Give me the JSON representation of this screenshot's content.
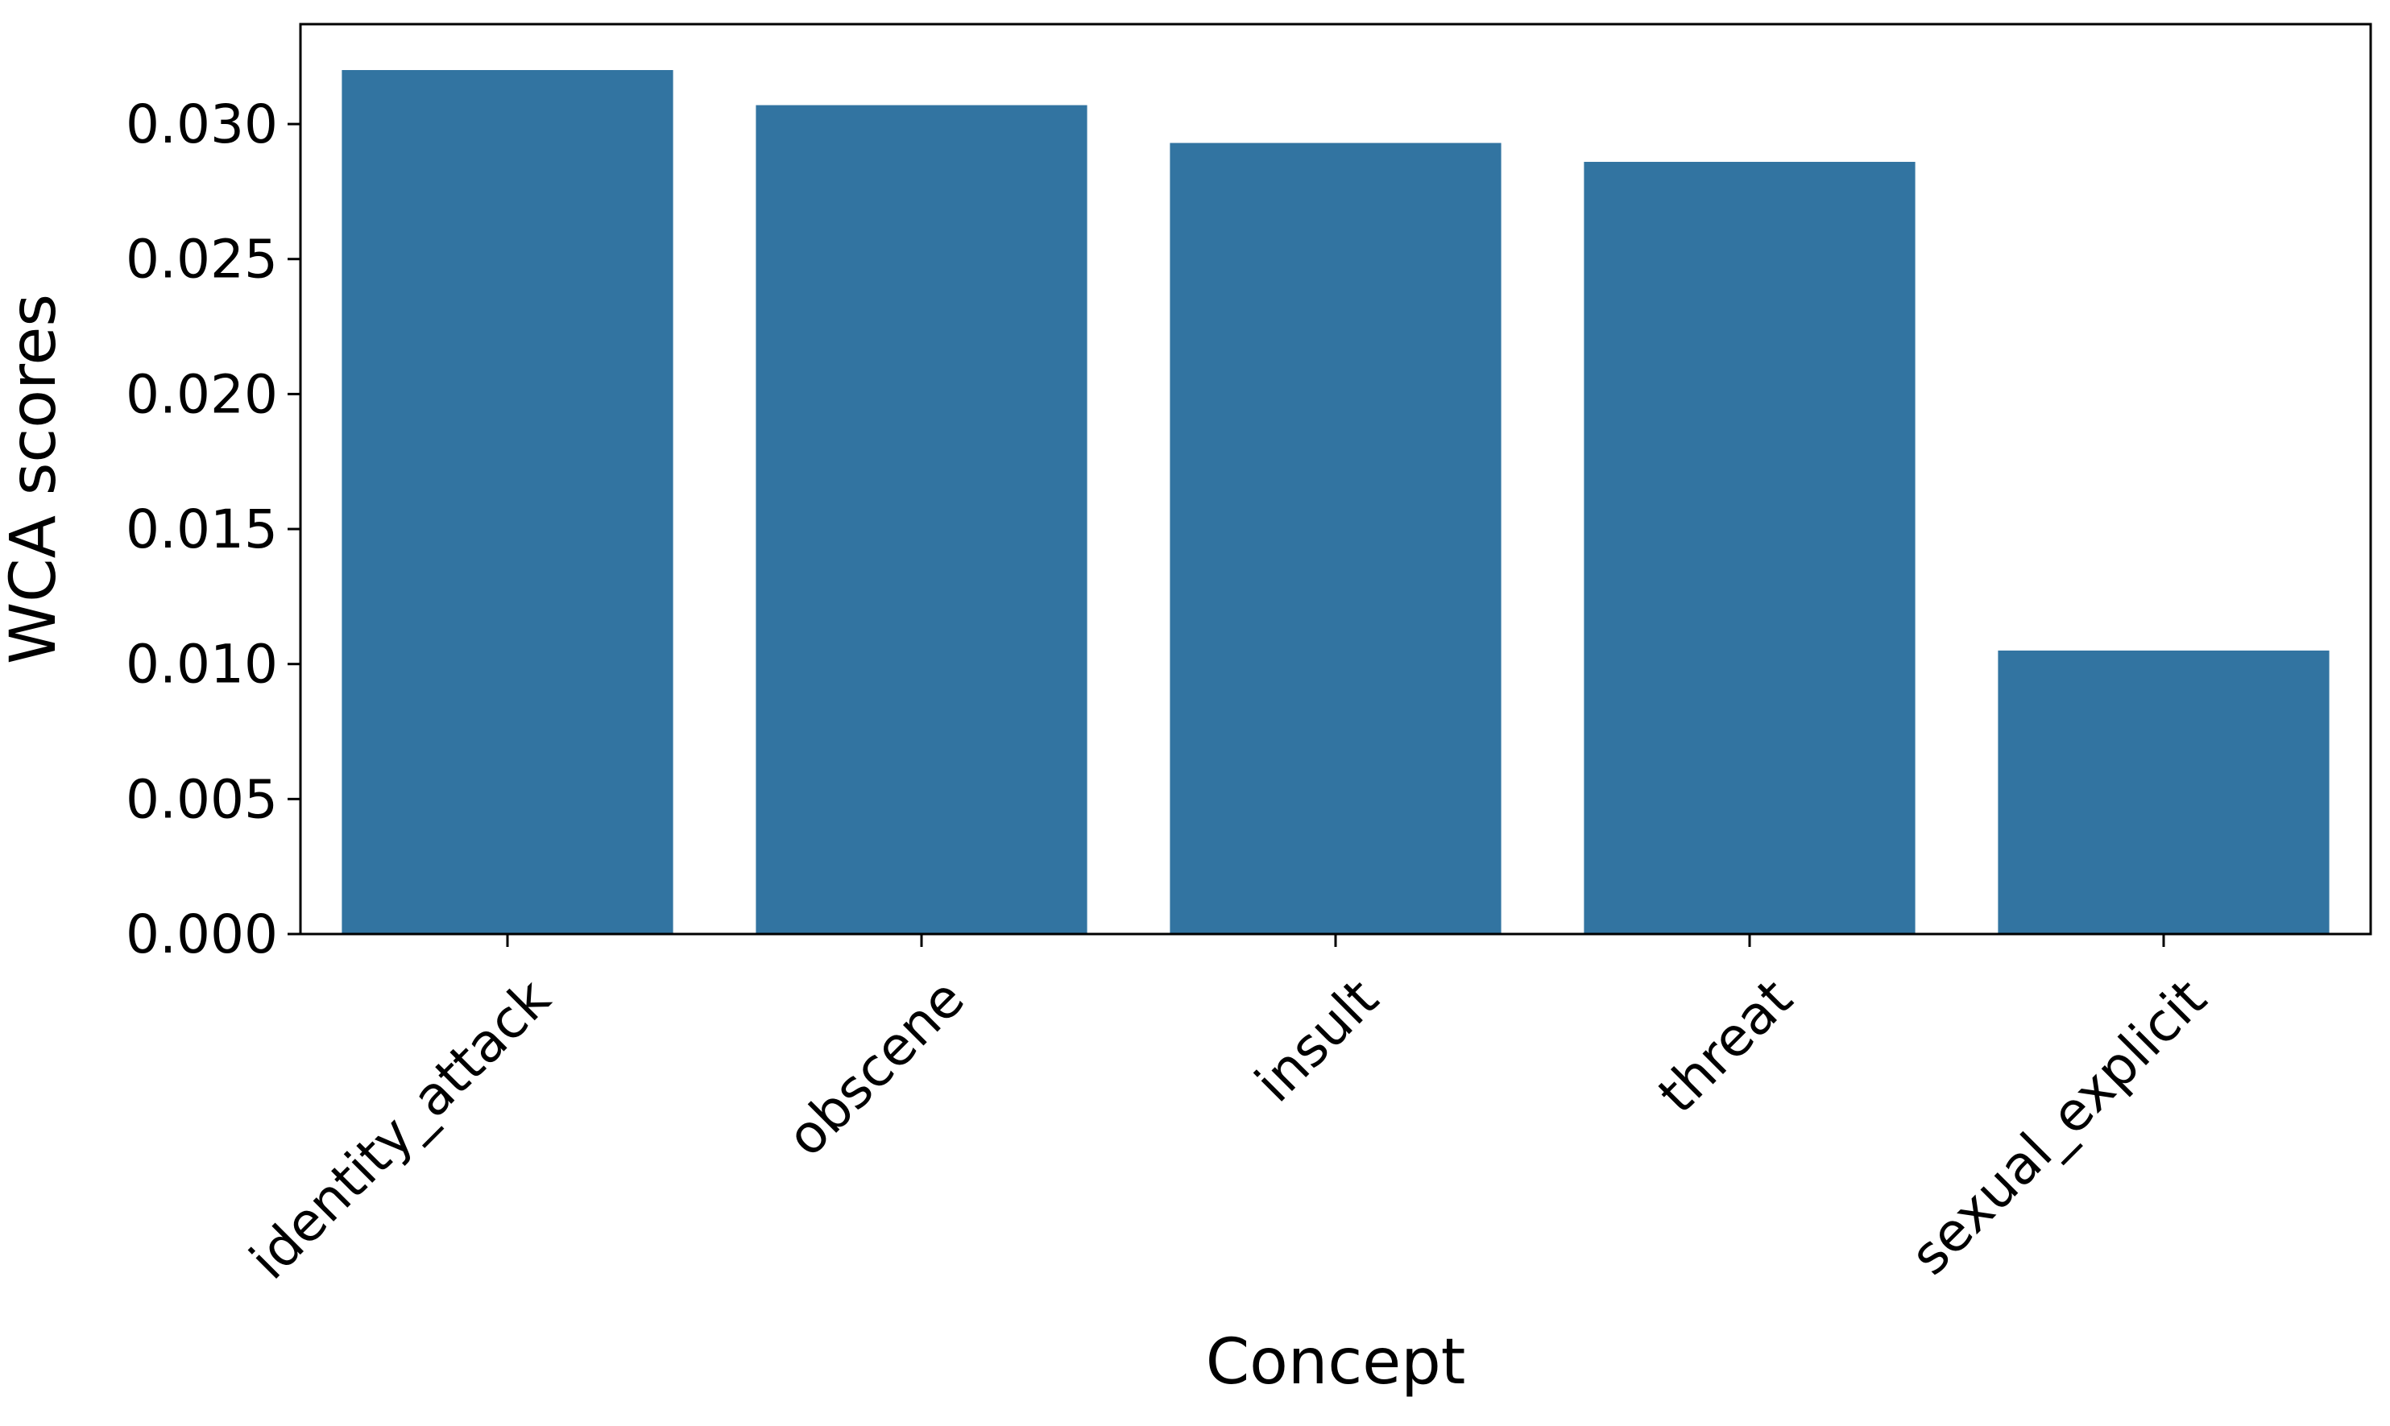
{
  "chart_data": {
    "type": "bar",
    "title": "",
    "xlabel": "Concept",
    "ylabel": "WCA scores",
    "categories": [
      "identity_attack",
      "obscene",
      "insult",
      "threat",
      "sexual_explicit"
    ],
    "values": [
      0.032,
      0.0307,
      0.0293,
      0.0286,
      0.0105
    ],
    "ylim": [
      0,
      0.0337
    ],
    "yticks": [
      0.0,
      0.005,
      0.01,
      0.015,
      0.02,
      0.025,
      0.03
    ],
    "ytick_labels": [
      "0.000",
      "0.005",
      "0.010",
      "0.015",
      "0.020",
      "0.025",
      "0.030"
    ],
    "bar_color": "#3274a1",
    "grid": false,
    "legend": "none"
  }
}
